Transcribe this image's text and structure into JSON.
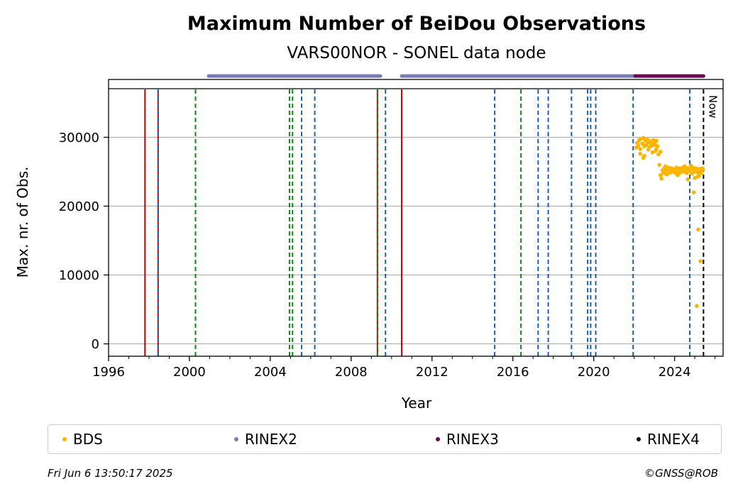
{
  "chart_data": {
    "type": "scatter",
    "title": "Maximum Number of BeiDou Observations",
    "subtitle": "VARS00NOR - SONEL data node",
    "xlabel": "Year",
    "ylabel": "Max. nr. of Obs.",
    "xlim": [
      1996.0,
      2026.4
    ],
    "ylim": [
      -1800,
      38400
    ],
    "xticks": [
      1996,
      2000,
      2004,
      2008,
      2012,
      2016,
      2020,
      2024
    ],
    "yticks": [
      0,
      10000,
      20000,
      30000
    ],
    "grid": "horizontal",
    "now_label": "Now",
    "now_x": 2025.43,
    "colors": {
      "bds": "#ffb400",
      "rinex2": "#7a7ab8",
      "rinex3": "#6a0a55",
      "rinex4": "#22001a",
      "event_red": "#cc0000",
      "event_blue": "#1f5fa8",
      "event_green": "#118811"
    },
    "series": [
      {
        "name": "BDS",
        "color": "#ffb400",
        "x": [
          2022.1,
          2022.15,
          2022.2,
          2022.25,
          2022.3,
          2022.35,
          2022.4,
          2022.45,
          2022.5,
          2022.55,
          2022.6,
          2022.65,
          2022.7,
          2022.75,
          2022.8,
          2022.85,
          2022.9,
          2022.95,
          2023.0,
          2023.05,
          2023.1,
          2023.15,
          2023.2,
          2023.25,
          2023.3,
          2023.35,
          2023.4,
          2023.45,
          2023.5,
          2023.55,
          2023.6,
          2023.65,
          2023.7,
          2023.75,
          2023.8,
          2023.85,
          2023.9,
          2023.95,
          2024.0,
          2024.05,
          2024.1,
          2024.15,
          2024.2,
          2024.25,
          2024.3,
          2024.35,
          2024.4,
          2024.45,
          2024.5,
          2024.55,
          2024.6,
          2024.65,
          2024.7,
          2024.75,
          2024.8,
          2024.85,
          2024.9,
          2024.95,
          2025.0,
          2025.05,
          2025.1,
          2025.15,
          2025.2,
          2025.25,
          2025.3,
          2025.35,
          2025.4,
          2022.3,
          2022.5,
          2022.7,
          2022.9,
          2023.1,
          2023.3,
          2023.6,
          2023.9,
          2024.2,
          2024.5,
          2024.8,
          2025.0,
          2025.2,
          2022.45,
          2023.05,
          2023.55,
          2024.15,
          2024.65,
          2025.15,
          2025.32,
          2024.95,
          2025.1,
          2025.17,
          2025.28
        ],
        "y": [
          28500,
          29200,
          28800,
          29600,
          28300,
          29800,
          29100,
          29900,
          28700,
          29500,
          28900,
          29700,
          29300,
          28600,
          29400,
          29000,
          28800,
          29600,
          29200,
          28900,
          29500,
          28700,
          27500,
          26000,
          24500,
          24000,
          25200,
          24800,
          25500,
          25100,
          25400,
          24700,
          25600,
          25200,
          24900,
          25500,
          25300,
          25000,
          25400,
          24800,
          25600,
          25200,
          25100,
          25500,
          24900,
          25300,
          25600,
          25000,
          25400,
          25200,
          24800,
          25500,
          25300,
          25100,
          25400,
          24700,
          25600,
          25200,
          25000,
          25500,
          25300,
          24900,
          25400,
          25200,
          25100,
          25500,
          25300,
          27600,
          27300,
          28200,
          27800,
          28300,
          27900,
          24600,
          25000,
          24700,
          25800,
          25900,
          24100,
          24400,
          27000,
          28000,
          25800,
          24500,
          23900,
          24300,
          24800,
          22000,
          5500,
          16600,
          12000
        ]
      },
      {
        "name": "RINEX2",
        "color": "#7a7ab8",
        "ranges": [
          [
            2000.95,
            2009.45
          ],
          [
            2010.5,
            2022.05
          ]
        ],
        "y": 38900
      },
      {
        "name": "RINEX3",
        "color": "#6a0a55",
        "ranges": [
          [
            2022.05,
            2025.43
          ]
        ],
        "y": 38900
      },
      {
        "name": "RINEX4",
        "color": "#22001a",
        "ranges": [],
        "y": 38900
      }
    ],
    "events": [
      {
        "x": 1997.8,
        "color": "#cc0000",
        "style": "solid"
      },
      {
        "x": 1998.45,
        "color": "#cc0000",
        "style": "solid"
      },
      {
        "x": 1998.45,
        "color": "#1f5fa8",
        "style": "dashed"
      },
      {
        "x": 2000.3,
        "color": "#118811",
        "style": "dashed"
      },
      {
        "x": 2004.95,
        "color": "#118811",
        "style": "dashed"
      },
      {
        "x": 2005.1,
        "color": "#118811",
        "style": "dashed"
      },
      {
        "x": 2005.55,
        "color": "#1f5fa8",
        "style": "dashed"
      },
      {
        "x": 2006.2,
        "color": "#1f5fa8",
        "style": "dashed"
      },
      {
        "x": 2009.3,
        "color": "#cc0000",
        "style": "solid"
      },
      {
        "x": 2009.3,
        "color": "#118811",
        "style": "dashed"
      },
      {
        "x": 2009.7,
        "color": "#1f5fa8",
        "style": "dashed"
      },
      {
        "x": 2010.5,
        "color": "#cc0000",
        "style": "solid"
      },
      {
        "x": 2015.1,
        "color": "#1f5fa8",
        "style": "dashed"
      },
      {
        "x": 2016.4,
        "color": "#118811",
        "style": "dashed"
      },
      {
        "x": 2017.25,
        "color": "#1f5fa8",
        "style": "dashed"
      },
      {
        "x": 2017.75,
        "color": "#1f5fa8",
        "style": "dashed"
      },
      {
        "x": 2018.9,
        "color": "#1f5fa8",
        "style": "dashed"
      },
      {
        "x": 2019.7,
        "color": "#1f5fa8",
        "style": "dashed"
      },
      {
        "x": 2019.85,
        "color": "#1f5fa8",
        "style": "dashed"
      },
      {
        "x": 2020.1,
        "color": "#1f5fa8",
        "style": "dashed"
      },
      {
        "x": 2021.95,
        "color": "#1f5fa8",
        "style": "dashed"
      },
      {
        "x": 2024.75,
        "color": "#1f5fa8",
        "style": "dashed"
      },
      {
        "x": 2025.43,
        "color": "#000000",
        "style": "dashed"
      }
    ]
  },
  "legend": {
    "items": [
      {
        "label": "BDS",
        "color": "#ffb400"
      },
      {
        "label": "RINEX2",
        "color": "#7a7ab8"
      },
      {
        "label": "RINEX3",
        "color": "#6a0a55"
      },
      {
        "label": "RINEX4",
        "color": "#22001a"
      }
    ]
  },
  "footer": {
    "timestamp": "Fri Jun  6 13:50:17 2025",
    "copyright": "©GNSS@ROB"
  }
}
